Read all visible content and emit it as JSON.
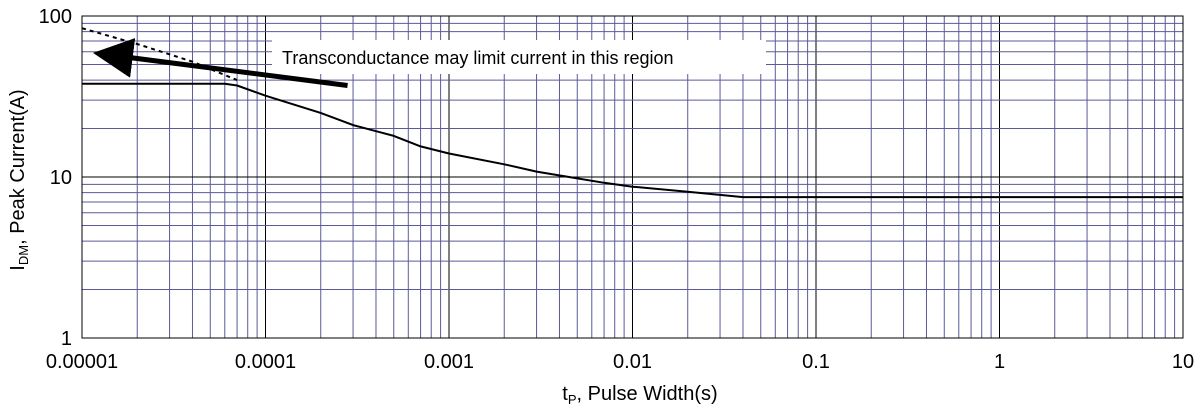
{
  "chart_data": {
    "type": "line",
    "xscale": "log",
    "yscale": "log",
    "xlim": [
      1e-05,
      10
    ],
    "ylim": [
      1,
      100
    ],
    "grid": true,
    "xticks": [
      {
        "value": 1e-05,
        "label": "0.00001"
      },
      {
        "value": 0.0001,
        "label": "0.0001"
      },
      {
        "value": 0.001,
        "label": "0.001"
      },
      {
        "value": 0.01,
        "label": "0.01"
      },
      {
        "value": 0.1,
        "label": "0.1"
      },
      {
        "value": 1,
        "label": "1"
      },
      {
        "value": 10,
        "label": "10"
      }
    ],
    "yticks": [
      {
        "value": 1,
        "label": "1"
      },
      {
        "value": 10,
        "label": "10"
      },
      {
        "value": 100,
        "label": "100"
      }
    ],
    "xlabel": {
      "main": "t",
      "sub": "P",
      "rest": ", Pulse Width(s)"
    },
    "ylabel": {
      "main": "I",
      "sub": "DM",
      "rest": ", Peak Current(A)"
    },
    "series": [
      {
        "style": "solid",
        "x": [
          1e-05,
          6e-05,
          7e-05,
          0.0001,
          0.0002,
          0.0003,
          0.0005,
          0.0007,
          0.001,
          0.002,
          0.003,
          0.005,
          0.007,
          0.01,
          0.02,
          0.04,
          0.1,
          1,
          10
        ],
        "y": [
          38,
          38,
          37,
          32,
          25,
          21,
          18,
          15.5,
          14,
          12,
          10.8,
          9.8,
          9.2,
          8.7,
          8.1,
          7.5,
          7.5,
          7.5,
          7.5
        ]
      },
      {
        "style": "dashed",
        "x": [
          1e-05,
          2e-05,
          4e-05,
          7e-05
        ],
        "y": [
          84,
          67,
          52,
          40
        ]
      }
    ],
    "annotation": {
      "text": "Transconductance may limit current in this region",
      "arrow_from": {
        "x": 0.00028,
        "y": 37
      },
      "arrow_to": {
        "x": 1.3e-05,
        "y": 58
      }
    }
  }
}
